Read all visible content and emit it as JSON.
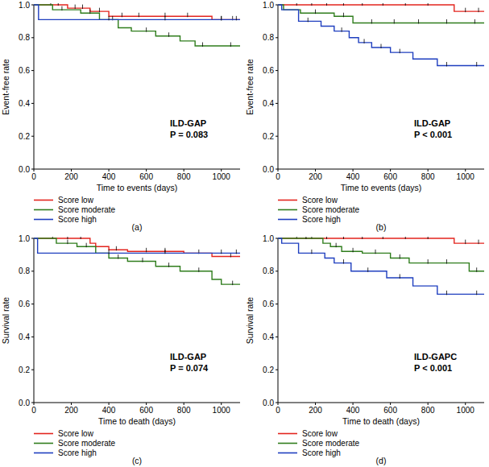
{
  "chart_data": [
    {
      "type": "line",
      "line_style": "step",
      "label": "(a)",
      "annotations": [
        "ILD-GAP",
        "P = 0.083"
      ],
      "x_label": "Time to events (days)",
      "y_label": "Event-free rate",
      "xlim": [
        0,
        1100
      ],
      "xticks": [
        0,
        200,
        400,
        600,
        800,
        1000
      ],
      "ylim": [
        0,
        1
      ],
      "yticks": [
        {
          "value": 0,
          "label": "0.0"
        },
        {
          "value": 0.2,
          "label": "0.2"
        },
        {
          "value": 0.4,
          "label": "0.4"
        },
        {
          "value": 0.6,
          "label": "0.6"
        },
        {
          "value": 0.8,
          "label": "0.8"
        },
        {
          "value": 1,
          "label": "1.0"
        }
      ],
      "series": [
        {
          "name": "Score low",
          "color": "#e3251e",
          "x": [
            0,
            180,
            300,
            400,
            950,
            1100
          ],
          "values": [
            1,
            0.98,
            0.96,
            0.93,
            0.91,
            0.91
          ],
          "censored": [
            90,
            130,
            220,
            260,
            350,
            470,
            560,
            700,
            820,
            1000,
            1060
          ]
        },
        {
          "name": "Score moderate",
          "color": "#2f7d1c",
          "x": [
            0,
            100,
            250,
            350,
            450,
            520,
            650,
            780,
            860,
            1100
          ],
          "values": [
            1,
            0.97,
            0.95,
            0.91,
            0.86,
            0.84,
            0.81,
            0.78,
            0.75,
            0.75
          ],
          "censored": [
            150,
            300,
            420,
            600,
            720,
            900,
            1050
          ]
        },
        {
          "name": "Score high",
          "color": "#1f3fbf",
          "x": [
            0,
            25,
            1100
          ],
          "values": [
            1,
            0.91,
            0.91
          ],
          "censored": [
            400,
            700,
            1000,
            1080
          ]
        }
      ]
    },
    {
      "type": "line",
      "line_style": "step",
      "label": "(b)",
      "annotations": [
        "ILD-GAP",
        "P < 0.001"
      ],
      "x_label": "Time to events (days)",
      "y_label": "Event-free rate",
      "xlim": [
        0,
        1100
      ],
      "xticks": [
        0,
        200,
        400,
        600,
        800,
        1000
      ],
      "ylim": [
        0,
        1
      ],
      "yticks": [
        {
          "value": 0,
          "label": "0.0"
        },
        {
          "value": 0.2,
          "label": "0.2"
        },
        {
          "value": 0.4,
          "label": "0.4"
        },
        {
          "value": 0.6,
          "label": "0.6"
        },
        {
          "value": 0.8,
          "label": "0.8"
        },
        {
          "value": 1,
          "label": "1.0"
        }
      ],
      "series": [
        {
          "name": "Score low",
          "color": "#e3251e",
          "x": [
            0,
            940,
            1100
          ],
          "values": [
            1,
            0.96,
            0.96
          ],
          "censored": [
            100,
            180,
            260,
            350,
            450,
            560,
            680,
            800,
            1000,
            1070
          ]
        },
        {
          "name": "Score moderate",
          "color": "#2f7d1c",
          "x": [
            0,
            30,
            120,
            300,
            400,
            1100
          ],
          "values": [
            1,
            0.97,
            0.95,
            0.93,
            0.89,
            0.89
          ],
          "censored": [
            200,
            350,
            500,
            620,
            750,
            900,
            1050
          ]
        },
        {
          "name": "Score high",
          "color": "#1f3fbf",
          "x": [
            0,
            20,
            110,
            230,
            300,
            380,
            430,
            500,
            600,
            720,
            850,
            1100
          ],
          "values": [
            1,
            0.97,
            0.9,
            0.87,
            0.84,
            0.8,
            0.77,
            0.74,
            0.71,
            0.67,
            0.63,
            0.63
          ],
          "censored": [
            160,
            340,
            460,
            550,
            650,
            900,
            1060
          ]
        }
      ]
    },
    {
      "type": "line",
      "line_style": "step",
      "label": "(c)",
      "annotations": [
        "ILD-GAP",
        "P = 0.074"
      ],
      "x_label": "Time to death (days)",
      "y_label": "Survival rate",
      "xlim": [
        0,
        1100
      ],
      "xticks": [
        0,
        200,
        400,
        600,
        800,
        1000
      ],
      "ylim": [
        0,
        1
      ],
      "yticks": [
        {
          "value": 0,
          "label": "0.0"
        },
        {
          "value": 0.2,
          "label": "0.2"
        },
        {
          "value": 0.4,
          "label": "0.4"
        },
        {
          "value": 0.6,
          "label": "0.6"
        },
        {
          "value": 0.8,
          "label": "0.8"
        },
        {
          "value": 1,
          "label": "1.0"
        }
      ],
      "series": [
        {
          "name": "Score low",
          "color": "#e3251e",
          "x": [
            0,
            300,
            330,
            400,
            500,
            800,
            950,
            1100
          ],
          "values": [
            1,
            0.97,
            0.95,
            0.93,
            0.92,
            0.91,
            0.89,
            0.89
          ],
          "censored": [
            100,
            180,
            250,
            440,
            600,
            700,
            880,
            1050
          ]
        },
        {
          "name": "Score moderate",
          "color": "#2f7d1c",
          "x": [
            0,
            120,
            230,
            330,
            400,
            500,
            650,
            780,
            950,
            1000,
            1100
          ],
          "values": [
            1,
            0.97,
            0.95,
            0.91,
            0.88,
            0.86,
            0.83,
            0.8,
            0.75,
            0.72,
            0.72
          ],
          "censored": [
            180,
            280,
            450,
            580,
            720,
            880,
            1060
          ]
        },
        {
          "name": "Score high",
          "color": "#1f3fbf",
          "x": [
            0,
            20,
            1100
          ],
          "values": [
            1,
            0.91,
            0.91
          ],
          "censored": [
            400,
            700,
            1000,
            1080
          ]
        }
      ]
    },
    {
      "type": "line",
      "line_style": "step",
      "label": "(d)",
      "annotations": [
        "ILD-GAPC",
        "P < 0.001"
      ],
      "x_label": "Time to death (days)",
      "y_label": "Survival rate",
      "xlim": [
        0,
        1100
      ],
      "xticks": [
        0,
        200,
        400,
        600,
        800,
        1000
      ],
      "ylim": [
        0,
        1
      ],
      "yticks": [
        {
          "value": 0,
          "label": "0.0"
        },
        {
          "value": 0.2,
          "label": "0.2"
        },
        {
          "value": 0.4,
          "label": "0.4"
        },
        {
          "value": 0.6,
          "label": "0.6"
        },
        {
          "value": 0.8,
          "label": "0.8"
        },
        {
          "value": 1,
          "label": "1.0"
        }
      ],
      "series": [
        {
          "name": "Score low",
          "color": "#e3251e",
          "x": [
            0,
            940,
            1100
          ],
          "values": [
            1,
            0.97,
            0.97
          ],
          "censored": [
            100,
            180,
            260,
            350,
            450,
            560,
            680,
            800,
            1000,
            1070
          ]
        },
        {
          "name": "Score moderate",
          "color": "#2f7d1c",
          "x": [
            0,
            240,
            280,
            340,
            450,
            600,
            700,
            1020,
            1100
          ],
          "values": [
            1,
            0.97,
            0.95,
            0.92,
            0.91,
            0.88,
            0.85,
            0.8,
            0.8
          ],
          "censored": [
            150,
            310,
            400,
            520,
            650,
            800,
            900,
            1060
          ]
        },
        {
          "name": "Score high",
          "color": "#1f3fbf",
          "x": [
            0,
            20,
            110,
            250,
            300,
            390,
            580,
            720,
            850,
            1100
          ],
          "values": [
            1,
            0.97,
            0.91,
            0.88,
            0.85,
            0.8,
            0.76,
            0.71,
            0.66,
            0.66
          ],
          "censored": [
            180,
            350,
            480,
            650,
            900,
            1060
          ]
        }
      ]
    }
  ]
}
